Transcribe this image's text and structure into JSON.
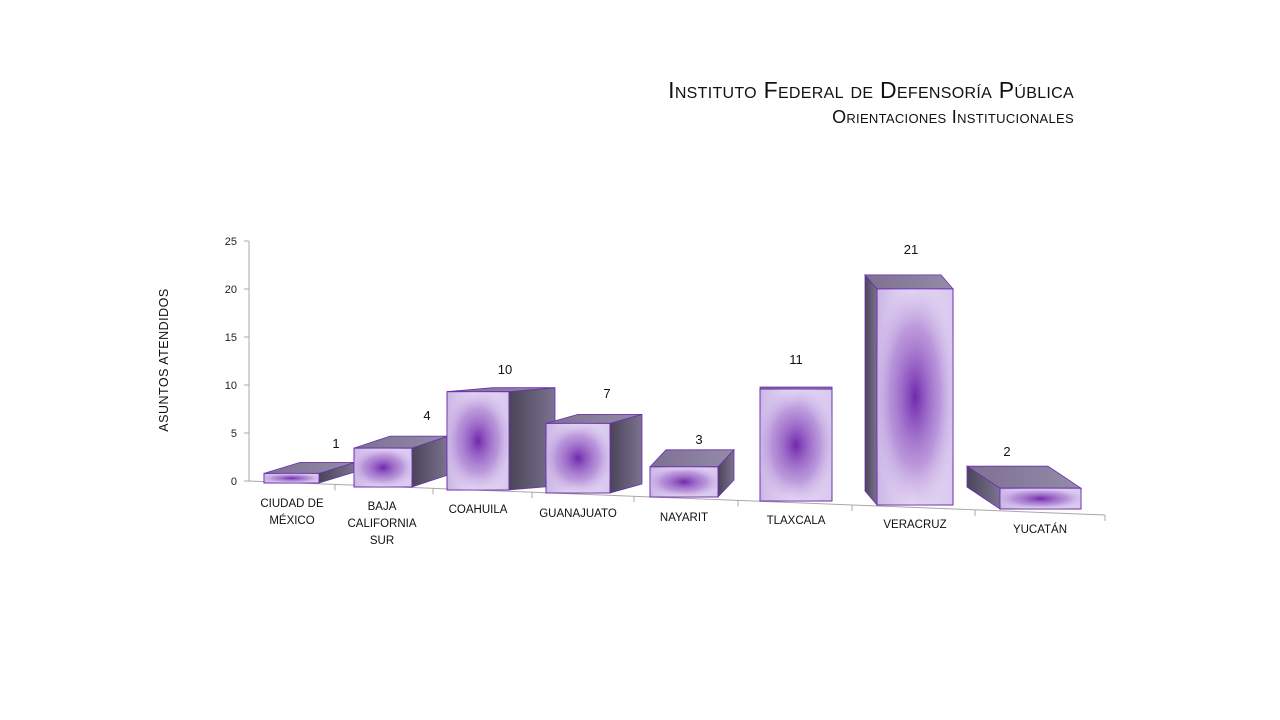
{
  "title": {
    "line1": "Instituto Federal de Defensoría Pública",
    "line2": "Orientaciones Institucionales"
  },
  "colors": {
    "bar_light": "#e8dcf5",
    "bar_mid": "#6f2fa8",
    "bar_side": "#55506a",
    "bar_top": "#8a7d99",
    "bar_outline": "#6b2fb0",
    "axis": "#b0b0b0"
  },
  "chart_data": {
    "type": "bar",
    "three_d": true,
    "ylabel": "ASUNTOS ATENDIDOS",
    "xlabel": "",
    "ylim": [
      0,
      25
    ],
    "yticks": [
      0,
      5,
      10,
      15,
      20,
      25
    ],
    "grid": false,
    "legend": "none",
    "categories": [
      [
        "CIUDAD DE",
        "MÉXICO"
      ],
      [
        "BAJA",
        "CALIFORNIA",
        "SUR"
      ],
      [
        "COAHUILA"
      ],
      [
        "GUANAJUATO"
      ],
      [
        "NAYARIT"
      ],
      [
        "TLAXCALA"
      ],
      [
        "VERACRUZ"
      ],
      [
        "YUCATÁN"
      ]
    ],
    "values": [
      1,
      4,
      10,
      7,
      3,
      11,
      21,
      2
    ]
  }
}
